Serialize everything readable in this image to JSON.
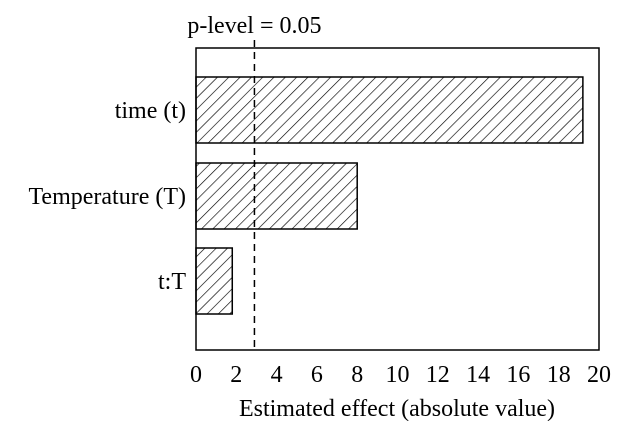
{
  "chart_data": {
    "type": "bar",
    "orientation": "horizontal",
    "categories": [
      "time (t)",
      "Temperature (T)",
      "t:T"
    ],
    "values": [
      19.2,
      8.0,
      1.8
    ],
    "xlabel": "Estimated effect (absolute value)",
    "ylabel": "",
    "xlim": [
      0,
      20
    ],
    "xticks": [
      0,
      2,
      4,
      6,
      8,
      10,
      12,
      14,
      16,
      18,
      20
    ],
    "grid": false,
    "bar_fill": "diagonal-hatch",
    "colors": {
      "bar_stroke": "#000000",
      "hatch": "#000000",
      "background": "#ffffff"
    },
    "reference_line": {
      "value": 2.9,
      "style": "dashed",
      "label": "p-level = 0.05"
    }
  }
}
